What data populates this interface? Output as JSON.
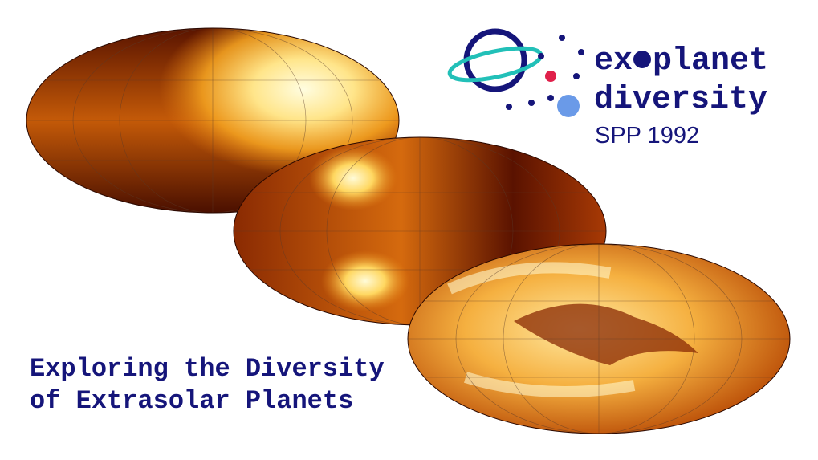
{
  "logo": {
    "word1_start": "ex",
    "word1_end": "planet",
    "word2": "diversity",
    "program": "SPP 1992"
  },
  "tagline": [
    "Exploring the Diversity",
    "of Extrasolar Planets"
  ]
}
